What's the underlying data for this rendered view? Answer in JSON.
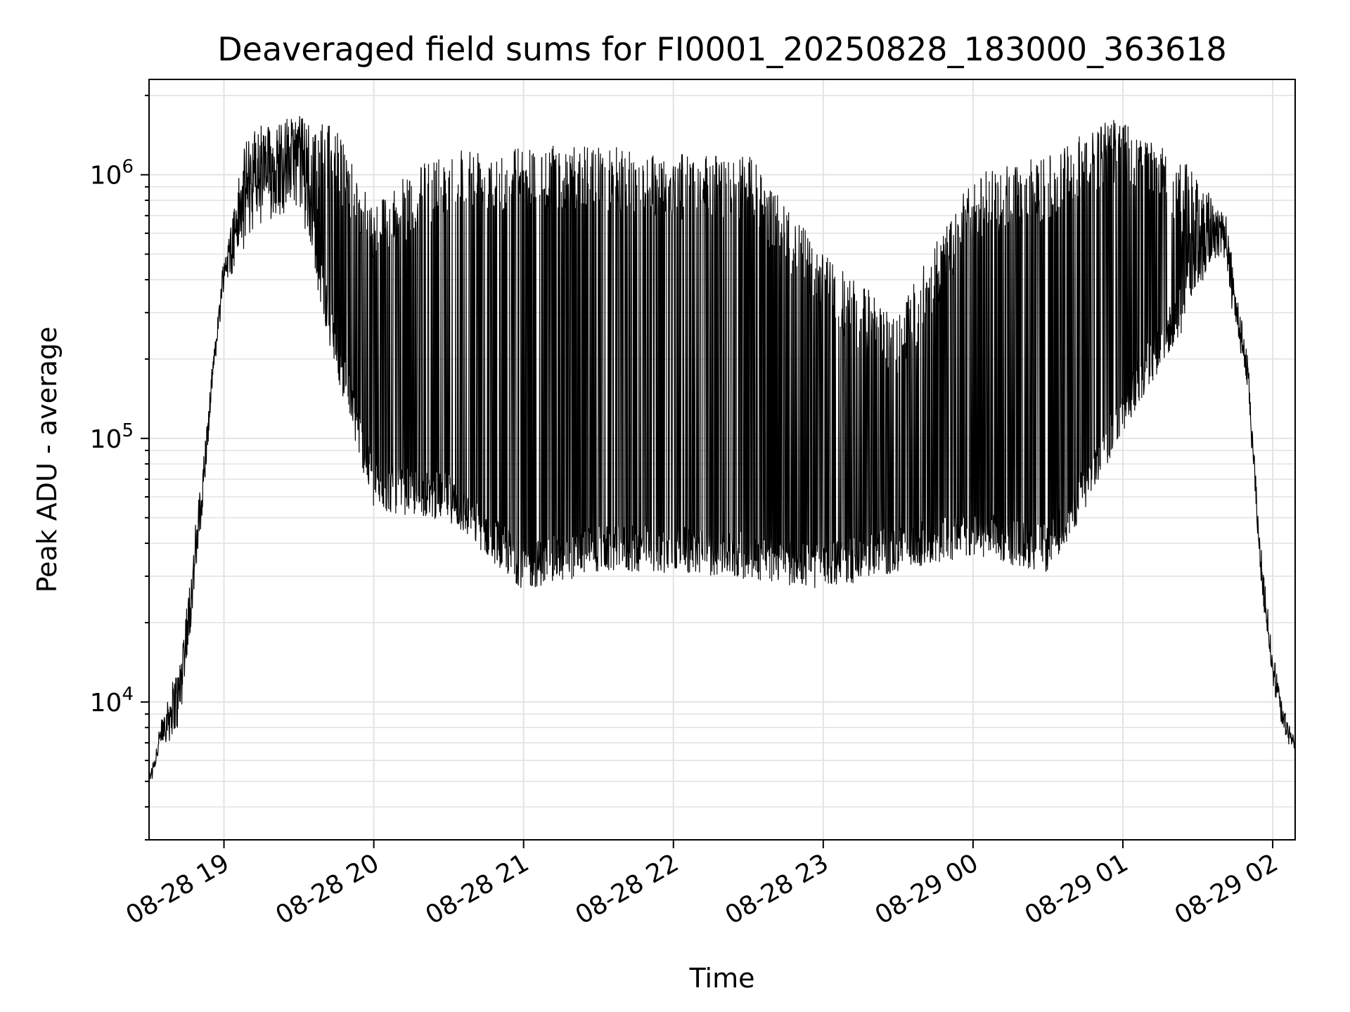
{
  "chart_data": {
    "type": "line",
    "title": "Deaveraged field sums for FI0001_20250828_183000_363618",
    "xlabel": "Time",
    "ylabel": "Peak ADU - average",
    "yscale": "log",
    "ylim": [
      3000,
      2300000
    ],
    "xlim": [
      "2025-08-28 18:30",
      "2025-08-29 02:09"
    ],
    "grid": true,
    "line_color": "#000000",
    "x_ticks": [
      "08-28 19",
      "08-28 20",
      "08-28 21",
      "08-28 22",
      "08-28 23",
      "08-29 00",
      "08-29 01",
      "08-29 02"
    ],
    "y_ticks": [
      {
        "base": "10",
        "exp": "4",
        "value": 10000
      },
      {
        "base": "10",
        "exp": "5",
        "value": 100000
      },
      {
        "base": "10",
        "exp": "6",
        "value": 1000000
      }
    ],
    "envelope": [
      {
        "t": "08-28 18:30",
        "base": 4800,
        "peak": 5200
      },
      {
        "t": "08-28 18:36",
        "base": 7000,
        "peak": 9500
      },
      {
        "t": "08-28 18:42",
        "base": 8000,
        "peak": 14000
      },
      {
        "t": "08-28 18:48",
        "base": 25000,
        "peak": 40000
      },
      {
        "t": "08-28 18:52",
        "base": 60000,
        "peak": 90000
      },
      {
        "t": "08-28 18:56",
        "base": 180000,
        "peak": 210000
      },
      {
        "t": "08-28 19:00",
        "base": 380000,
        "peak": 500000
      },
      {
        "t": "08-28 19:10",
        "base": 600000,
        "peak": 1500000
      },
      {
        "t": "08-28 19:30",
        "base": 800000,
        "peak": 1700000
      },
      {
        "t": "08-28 19:45",
        "base": 200000,
        "peak": 1500000
      },
      {
        "t": "08-28 20:00",
        "base": 60000,
        "peak": 800000
      },
      {
        "t": "08-28 20:30",
        "base": 55000,
        "peak": 1300000
      },
      {
        "t": "08-28 21:00",
        "base": 30000,
        "peak": 1300000
      },
      {
        "t": "08-28 21:30",
        "base": 35000,
        "peak": 1300000
      },
      {
        "t": "08-28 22:00",
        "base": 35000,
        "peak": 1200000
      },
      {
        "t": "08-28 22:30",
        "base": 33000,
        "peak": 1200000
      },
      {
        "t": "08-28 23:00",
        "base": 30000,
        "peak": 500000
      },
      {
        "t": "08-28 23:30",
        "base": 35000,
        "peak": 300000
      },
      {
        "t": "08-29 00:00",
        "base": 40000,
        "peak": 1000000
      },
      {
        "t": "08-29 00:30",
        "base": 35000,
        "peak": 1200000
      },
      {
        "t": "08-29 00:45",
        "base": 60000,
        "peak": 1500000
      },
      {
        "t": "08-29 01:00",
        "base": 120000,
        "peak": 1700000
      },
      {
        "t": "08-29 01:20",
        "base": 250000,
        "peak": 1200000
      },
      {
        "t": "08-29 01:40",
        "base": 500000,
        "peak": 800000
      },
      {
        "t": "08-29 01:50",
        "base": 150000,
        "peak": 200000
      },
      {
        "t": "08-29 01:55",
        "base": 30000,
        "peak": 40000
      },
      {
        "t": "08-29 02:00",
        "base": 12000,
        "peak": 15000
      },
      {
        "t": "08-29 02:05",
        "base": 7000,
        "peak": 9000
      },
      {
        "t": "08-29 02:09",
        "base": 6800,
        "peak": 7000
      }
    ]
  }
}
